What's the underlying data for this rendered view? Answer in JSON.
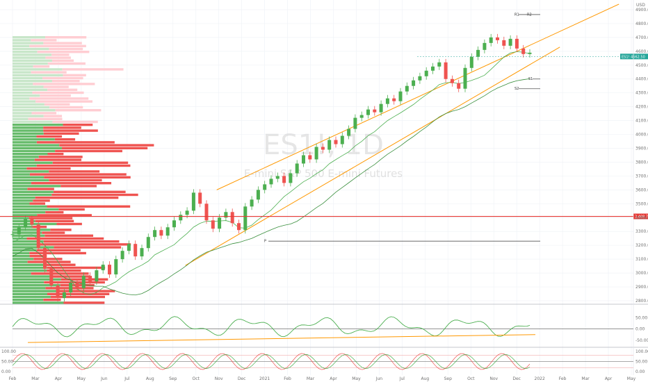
{
  "chart_data": {
    "type": "candlestick",
    "symbol": "ES1!",
    "timeframe": "1D",
    "subtitle": "E-mini S&P 500 E-mini Futures",
    "currency_label": "USD",
    "price_ticks": [
      4900,
      4800,
      4700,
      4600,
      4500,
      4400,
      4300,
      4200,
      4100,
      4000,
      3900,
      3800,
      3700,
      3600,
      3500,
      3400,
      3300,
      3200,
      3100,
      3000,
      2900,
      2800
    ],
    "price_range": [
      2780,
      4950
    ],
    "months": [
      "Feb",
      "Mar",
      "Apr",
      "May",
      "Jun",
      "Jul",
      "Aug",
      "Sep",
      "Oct",
      "Nov",
      "Dec",
      "2021",
      "Feb",
      "Mar",
      "Apr",
      "May",
      "Jun",
      "Jul",
      "Aug",
      "Sep",
      "Oct",
      "Nov",
      "Dec",
      "2022",
      "Feb",
      "Mar",
      "Apr",
      "May"
    ],
    "close_series": [
      3280,
      3330,
      3390,
      3350,
      3180,
      3030,
      2910,
      2820,
      2860,
      2930,
      2890,
      2980,
      2940,
      3020,
      3060,
      2990,
      3100,
      3160,
      3210,
      3120,
      3180,
      3260,
      3310,
      3270,
      3330,
      3380,
      3420,
      3450,
      3580,
      3500,
      3380,
      3320,
      3400,
      3440,
      3360,
      3310,
      3480,
      3530,
      3600,
      3640,
      3680,
      3700,
      3650,
      3720,
      3790,
      3850,
      3820,
      3910,
      3890,
      3960,
      3930,
      3990,
      4040,
      4120,
      4140,
      4180,
      4160,
      4220,
      4260,
      4240,
      4310,
      4350,
      4390,
      4420,
      4460,
      4490,
      4520,
      4400,
      4370,
      4330,
      4480,
      4560,
      4610,
      4660,
      4700,
      4680,
      4640,
      4690,
      4620,
      4580,
      4590
    ],
    "close_range_dates": [
      "2020-02",
      "2021-12"
    ],
    "current_price": "4562.50",
    "current_price_label": "ES1!",
    "level_line": "3,408.75",
    "level_line_value": 3408.75,
    "pivot_levels": {
      "P": 3230,
      "R1": 4865,
      "R2": 4865,
      "S1": 4400,
      "S2": 4330
    },
    "channel": {
      "upper_start": [
        0.33,
        3600
      ],
      "upper_end": [
        0.98,
        4940
      ],
      "lower_start": [
        0.33,
        3180
      ],
      "lower_end": [
        0.98,
        4630
      ]
    },
    "rsi_panel": {
      "ticks": [
        "50.00",
        "0.00",
        "-50.00"
      ],
      "tick_values": [
        50,
        0,
        -50
      ],
      "range": [
        -75,
        100
      ]
    },
    "stoch_panel": {
      "ticks": [
        "100.00",
        "50.00",
        "0.00"
      ],
      "tick_values": [
        100,
        50,
        0
      ],
      "range": [
        -10,
        110
      ]
    }
  },
  "colors": {
    "bull": "#26a69a",
    "bull_green": "#4caf50",
    "bear": "#ef5350",
    "channel": "#ff9800",
    "level_red": "#e53935",
    "ma_green": "#4caf50",
    "grid": "#f0f3f7"
  },
  "pivots": {
    "p_label": "P",
    "r1_label": "R1",
    "r2_label": "R2",
    "s1_label": "S1",
    "s2_label": "S2"
  }
}
